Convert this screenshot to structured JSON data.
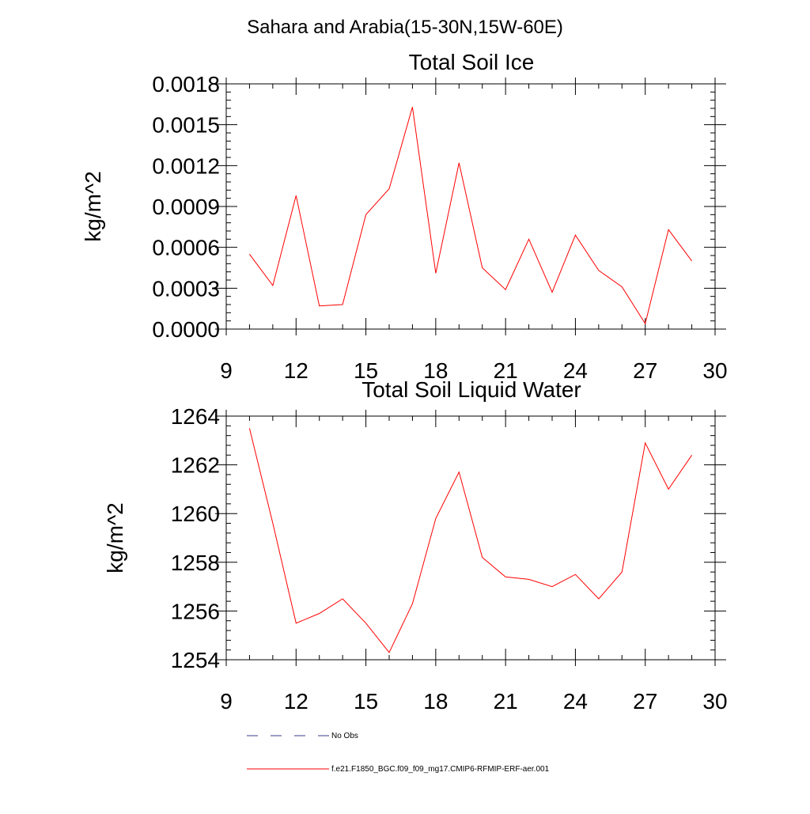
{
  "figure": {
    "title": "Sahara and Arabia(15-30N,15W-60E)"
  },
  "chart_data": [
    {
      "type": "line",
      "title": "Total Soil Ice",
      "ylabel": "kg/m^2",
      "xlabel": "",
      "xlim": [
        9,
        30
      ],
      "ylim": [
        0.0,
        0.0018
      ],
      "x_ticks": [
        9,
        12,
        15,
        18,
        21,
        24,
        27,
        30
      ],
      "x_tick_labels": [
        "9",
        "12",
        "15",
        "18",
        "21",
        "24",
        "27",
        "30"
      ],
      "y_ticks": [
        0.0,
        0.0003,
        0.0006,
        0.0009,
        0.0012,
        0.0015,
        0.0018
      ],
      "y_tick_labels": [
        "0.0000",
        "0.0003",
        "0.0006",
        "0.0009",
        "0.0012",
        "0.0015",
        "0.0018"
      ],
      "series": [
        {
          "name": "f.e21.F1850_BGC.f09_f09_mg17.CMIP6-RFMIP-ERF-aer.001",
          "color": "#ff0000",
          "x": [
            10,
            11,
            12,
            13,
            14,
            15,
            16,
            17,
            18,
            19,
            20,
            21,
            22,
            23,
            24,
            25,
            26,
            27,
            28,
            29
          ],
          "values": [
            0.00055,
            0.00032,
            0.00098,
            0.00017,
            0.00018,
            0.00084,
            0.00103,
            0.00163,
            0.00041,
            0.00122,
            0.00045,
            0.00029,
            0.00066,
            0.00027,
            0.00069,
            0.00043,
            0.00031,
            4e-05,
            0.00073,
            0.0005
          ]
        }
      ]
    },
    {
      "type": "line",
      "title": "Total Soil Liquid Water",
      "ylabel": "kg/m^2",
      "xlabel": "",
      "xlim": [
        9,
        30
      ],
      "ylim": [
        1254,
        1264
      ],
      "x_ticks": [
        9,
        12,
        15,
        18,
        21,
        24,
        27,
        30
      ],
      "x_tick_labels": [
        "9",
        "12",
        "15",
        "18",
        "21",
        "24",
        "27",
        "30"
      ],
      "y_ticks": [
        1254,
        1256,
        1258,
        1260,
        1262,
        1264
      ],
      "y_tick_labels": [
        "1254",
        "1256",
        "1258",
        "1260",
        "1262",
        "1264"
      ],
      "series": [
        {
          "name": "f.e21.F1850_BGC.f09_f09_mg17.CMIP6-RFMIP-ERF-aer.001",
          "color": "#ff0000",
          "x": [
            10,
            11,
            12,
            13,
            14,
            15,
            16,
            17,
            18,
            19,
            20,
            21,
            22,
            23,
            24,
            25,
            26,
            27,
            28,
            29
          ],
          "values": [
            1263.5,
            1259.6,
            1255.5,
            1255.9,
            1256.5,
            1255.5,
            1254.3,
            1256.3,
            1259.8,
            1261.7,
            1258.2,
            1257.4,
            1257.3,
            1257.0,
            1257.5,
            1256.5,
            1257.6,
            1262.9,
            1261.0,
            1262.4
          ]
        }
      ]
    }
  ],
  "legend": {
    "items": [
      {
        "label": "No Obs",
        "color": "#3b3b8f",
        "style": "dashed"
      },
      {
        "label": "f.e21.F1850_BGC.f09_f09_mg17.CMIP6-RFMIP-ERF-aer.001",
        "color": "#ff0000",
        "style": "solid"
      }
    ]
  }
}
